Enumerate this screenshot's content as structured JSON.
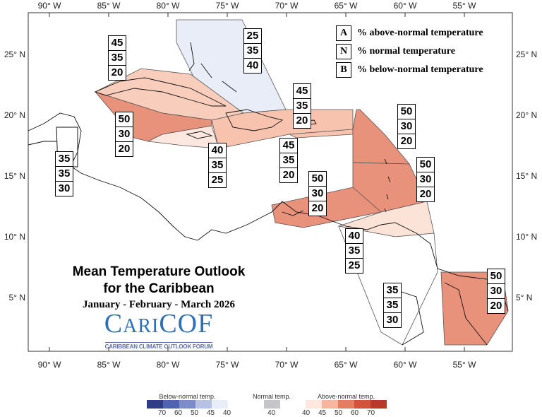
{
  "title": {
    "line1": "Mean Temperature Outlook",
    "line2": "for the Caribbean",
    "season": "January - February - March 2026"
  },
  "logo": {
    "name": "CariCOF",
    "subtitle": "CARIBBEAN CLIMATE OUTLOOK FORUM"
  },
  "axes": {
    "longitude_labels": [
      "90° W",
      "85° W",
      "80° W",
      "75° W",
      "70° W",
      "65° W",
      "60° W",
      "55° W"
    ],
    "latitude_labels": [
      "25° N",
      "20° N",
      "15° N",
      "10° N",
      "5° N"
    ]
  },
  "key": [
    {
      "letter": "A",
      "text": "% above-normal temperature"
    },
    {
      "letter": "N",
      "text": "% normal temperature"
    },
    {
      "letter": "B",
      "text": "% below-normal temperature"
    }
  ],
  "regions": [
    {
      "name": "Bahamas",
      "A": "25",
      "N": "35",
      "B": "40",
      "color": "#e9edf8"
    },
    {
      "name": "Cuba",
      "A": "45",
      "N": "35",
      "B": "20",
      "color": "#f8cdbb"
    },
    {
      "name": "Hispaniola",
      "A": "45",
      "N": "35",
      "B": "20",
      "color": "#f8c3ae"
    },
    {
      "name": "Western Caribbean",
      "A": "50",
      "N": "30",
      "B": "20",
      "color": "#e8917b"
    },
    {
      "name": "Jamaica",
      "A": "40",
      "N": "35",
      "B": "25",
      "color": "#fde7de"
    },
    {
      "name": "Belize",
      "A": "35",
      "N": "35",
      "B": "30",
      "color": "#ffffff"
    },
    {
      "name": "Puerto Rico",
      "A": "45",
      "N": "35",
      "B": "20",
      "color": "#f8c3ae"
    },
    {
      "name": "Leeward Islands",
      "A": "50",
      "N": "30",
      "B": "20",
      "color": "#e8917b"
    },
    {
      "name": "Windward Islands",
      "A": "50",
      "N": "30",
      "B": "20",
      "color": "#e8917b"
    },
    {
      "name": "ABC Islands",
      "A": "50",
      "N": "30",
      "B": "20",
      "color": "#e8917b"
    },
    {
      "name": "Trinidad",
      "A": "40",
      "N": "35",
      "B": "25",
      "color": "#fce3d8"
    },
    {
      "name": "Guyana",
      "A": "35",
      "N": "35",
      "B": "30",
      "color": "#ffffff"
    },
    {
      "name": "Suriname and French Guiana",
      "A": "50",
      "N": "30",
      "B": "20",
      "color": "#e8917b"
    }
  ],
  "legend": {
    "below": {
      "label": "Below-normal temp.",
      "ticks": [
        "70",
        "60",
        "50",
        "45",
        "40"
      ],
      "colors": [
        "#2e3d86",
        "#4f63b0",
        "#7b8cc8",
        "#b7c1e4",
        "#e9edf8"
      ]
    },
    "normal": {
      "label": "Normal temp.",
      "ticks": [
        "40"
      ],
      "colors": [
        "#c4c5c8"
      ]
    },
    "above": {
      "label": "Above-normal temp.",
      "ticks": [
        "40",
        "45",
        "50",
        "60",
        "70"
      ],
      "colors": [
        "#fde7de",
        "#f6b59c",
        "#e57d61",
        "#d2543c",
        "#b9392a"
      ]
    }
  }
}
